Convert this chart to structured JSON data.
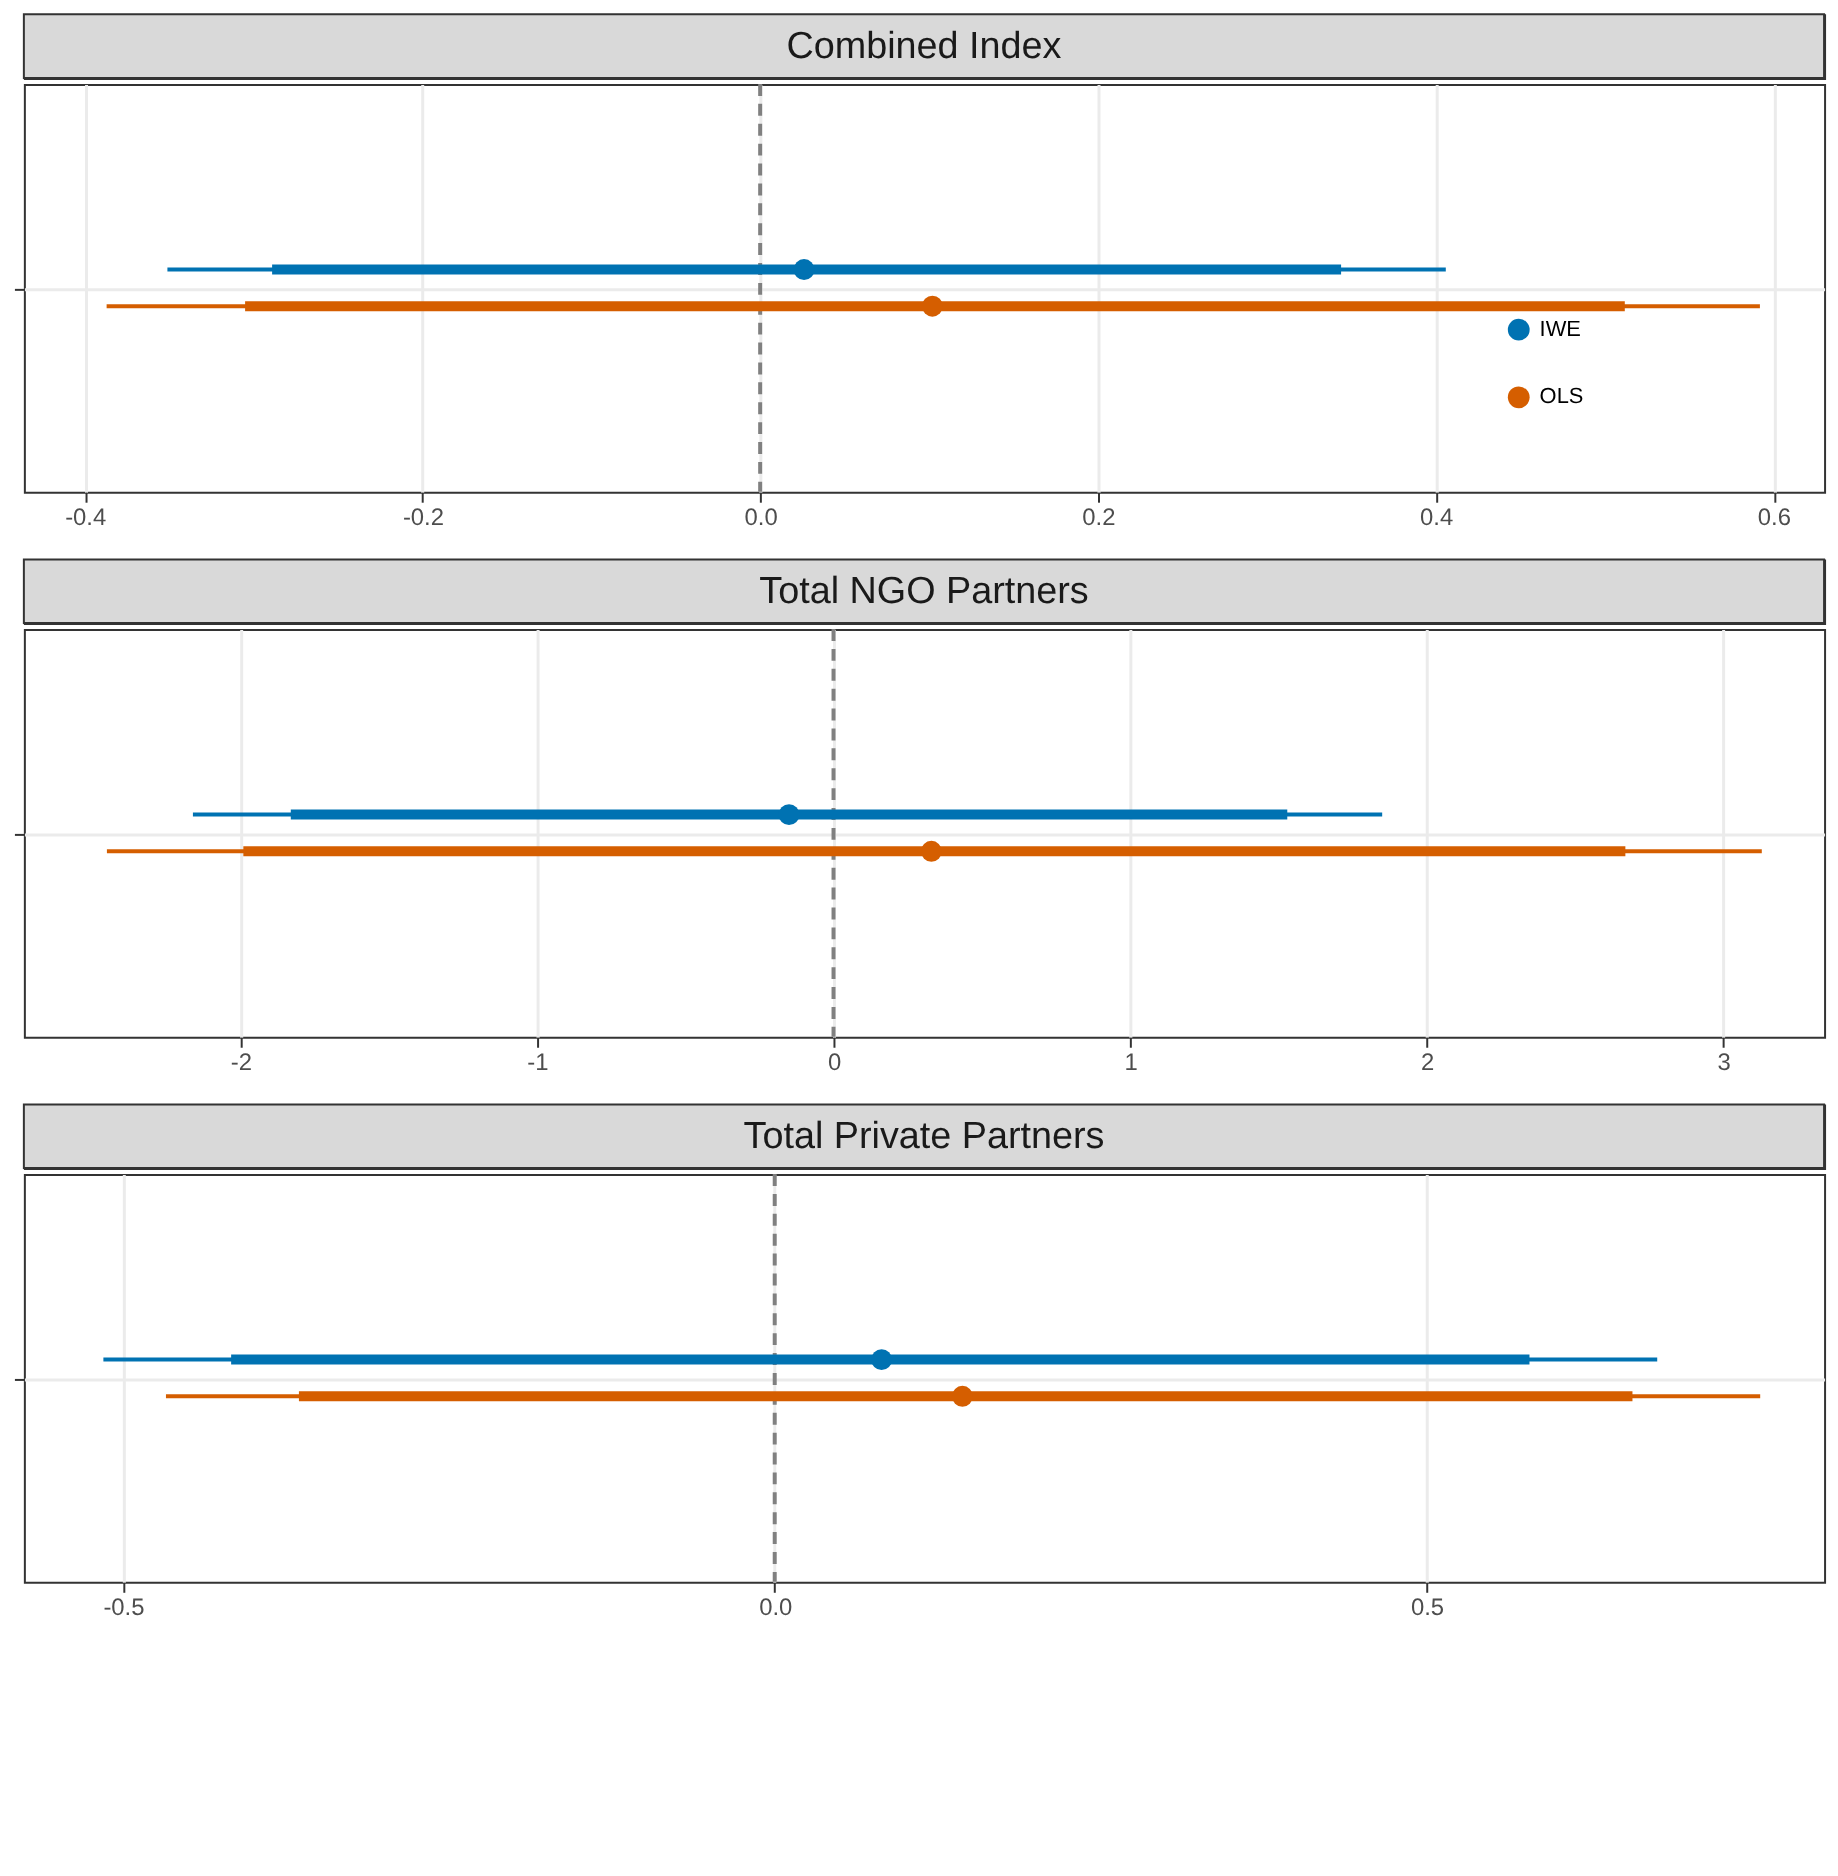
{
  "chart_data": [
    {
      "type": "scatter",
      "title": "Combined Index",
      "orientation": "horizontal",
      "categories": [
        null
      ],
      "xlim": [
        -0.436,
        0.63
      ],
      "xticks": [
        -0.4,
        -0.2,
        {
          "value": 0,
          "label": "0.0"
        },
        0.2,
        0.4,
        0.6
      ],
      "grid": true,
      "tick_labels": "x",
      "legend": "bottom right",
      "ref_lines": [
        {
          "axis": "x",
          "value": 0,
          "color": "#808080",
          "line_style": "dashed"
        }
      ],
      "series": [
        {
          "name": "IWE",
          "color": "#0072b2",
          "values": [
            0.026
          ],
          "errors": [
            [
              -0.351,
              0.406
            ]
          ]
        },
        {
          "name": "OLS",
          "color": "#d55e00",
          "values": [
            0.102
          ],
          "errors": [
            [
              -0.387,
              0.592
            ]
          ]
        },
        {
          "type": "bar",
          "color": "#0072b2",
          "base": [
            -0.289
          ],
          "values": [
            0.633
          ]
        },
        {
          "type": "bar",
          "color": "#d55e00",
          "base": [
            -0.305
          ],
          "values": [
            0.817
          ]
        }
      ]
    },
    {
      "type": "scatter",
      "title": "Total NGO Partners",
      "orientation": "horizontal",
      "categories": [
        null
      ],
      "xlim": [
        -2.73,
        3.34
      ],
      "xticks": [
        -2,
        -1,
        0,
        1,
        2,
        3
      ],
      "grid": true,
      "tick_labels": "x",
      "ref_lines": [
        {
          "axis": "x",
          "value": 0,
          "color": "#808080",
          "line_style": "dashed"
        }
      ],
      "series": [
        {
          "color": "#0072b2",
          "values": [
            -0.15
          ],
          "errors": [
            [
              -2.16,
              1.85
            ]
          ]
        },
        {
          "color": "#d55e00",
          "values": [
            0.33
          ],
          "errors": [
            [
              -2.45,
              3.13
            ]
          ]
        },
        {
          "type": "bar",
          "color": "#0072b2",
          "base": [
            -1.83
          ],
          "values": [
            3.36
          ]
        },
        {
          "type": "bar",
          "color": "#d55e00",
          "base": [
            -1.99
          ],
          "values": [
            4.66
          ]
        }
      ]
    },
    {
      "type": "scatter",
      "title": "Total Private Partners",
      "orientation": "horizontal",
      "categories": [
        null
      ],
      "xlim": [
        -0.576,
        0.805
      ],
      "xticks": [
        -0.5,
        {
          "value": 0,
          "label": "0.0"
        },
        0.5
      ],
      "grid": true,
      "tick_labels": "x",
      "ref_lines": [
        {
          "axis": "x",
          "value": 0,
          "color": "#808080",
          "line_style": "dashed"
        }
      ],
      "series": [
        {
          "color": "#0072b2",
          "values": [
            0.082
          ],
          "errors": [
            [
              -0.515,
              0.677
            ]
          ]
        },
        {
          "color": "#d55e00",
          "values": [
            0.144
          ],
          "errors": [
            [
              -0.467,
              0.756
            ]
          ]
        },
        {
          "type": "bar",
          "color": "#0072b2",
          "base": [
            -0.417
          ],
          "values": [
            0.996
          ]
        },
        {
          "type": "bar",
          "color": "#d55e00",
          "base": [
            -0.365
          ],
          "values": [
            1.023
          ]
        }
      ]
    }
  ]
}
